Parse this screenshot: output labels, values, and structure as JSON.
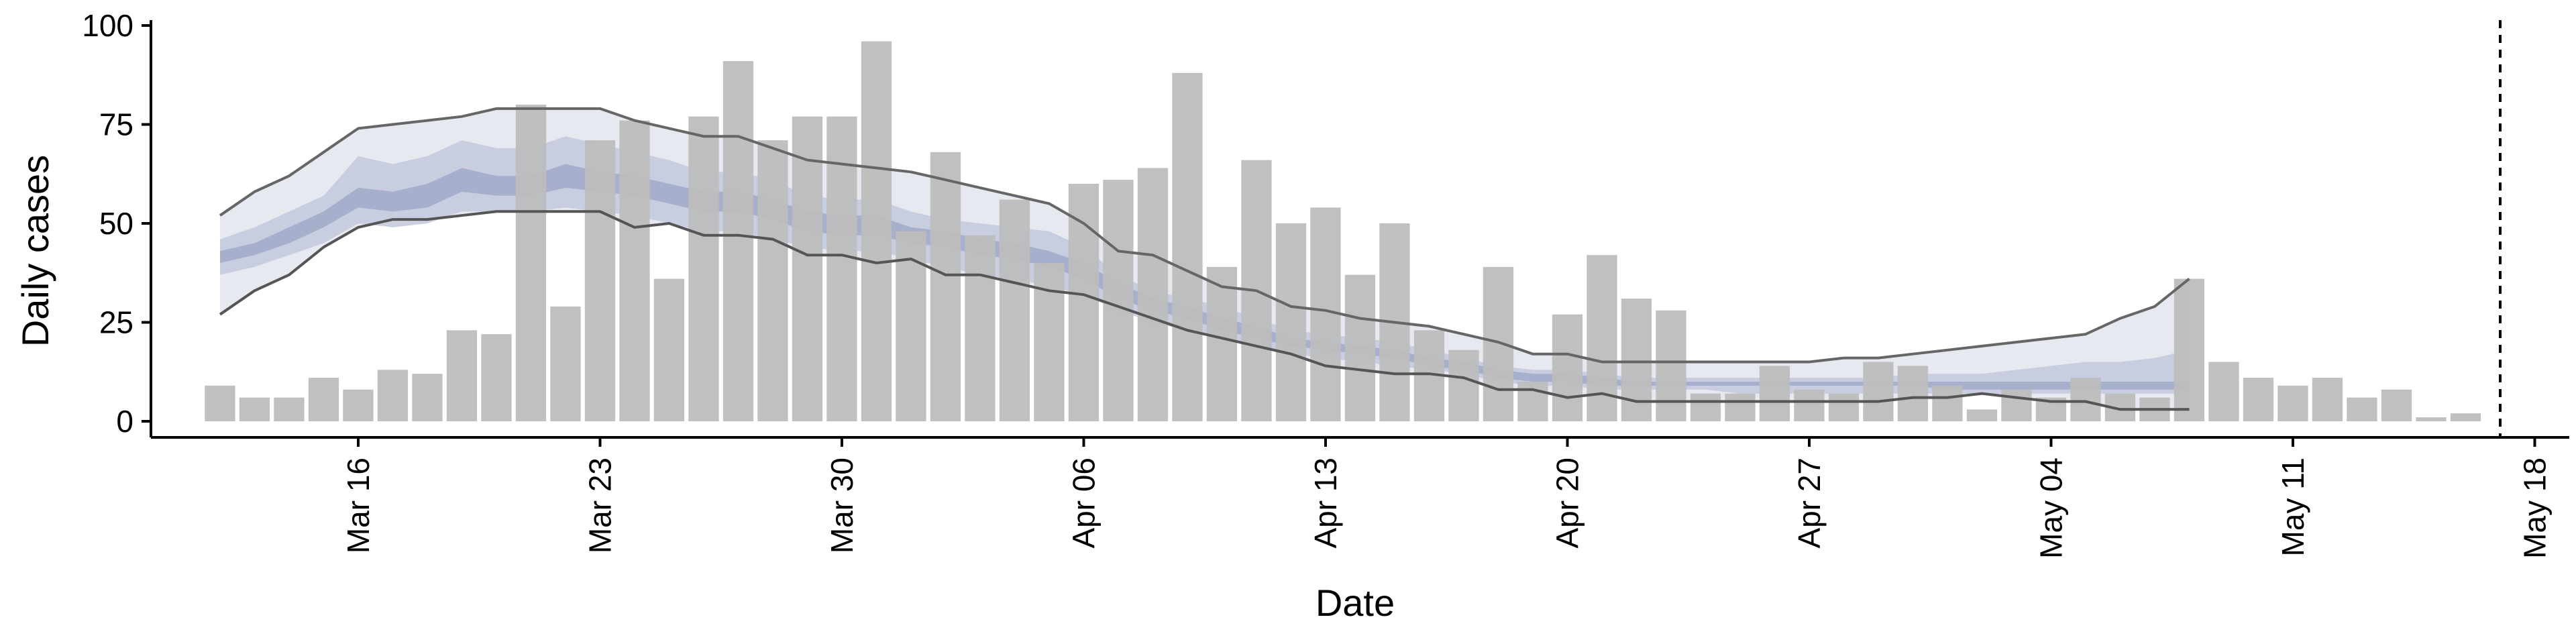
{
  "chart_data": {
    "type": "bar",
    "xlabel": "Date",
    "ylabel": "Daily cases",
    "ylim": [
      0,
      100
    ],
    "xlim": [
      "2020-03-10",
      "2020-05-19"
    ],
    "yticks": [
      0,
      25,
      50,
      75,
      100
    ],
    "xticks": [
      {
        "date": "2020-03-16",
        "label": "Mar 16"
      },
      {
        "date": "2020-03-23",
        "label": "Mar 23"
      },
      {
        "date": "2020-03-30",
        "label": "Mar 30"
      },
      {
        "date": "2020-04-06",
        "label": "Apr 06"
      },
      {
        "date": "2020-04-13",
        "label": "Apr 13"
      },
      {
        "date": "2020-04-20",
        "label": "Apr 20"
      },
      {
        "date": "2020-04-27",
        "label": "Apr 27"
      },
      {
        "date": "2020-05-04",
        "label": "May 04"
      },
      {
        "date": "2020-05-11",
        "label": "May 11"
      },
      {
        "date": "2020-05-18",
        "label": "May 18"
      }
    ],
    "grid": false,
    "bars": {
      "start_date": "2020-03-12",
      "color": "#bdbdbd",
      "values": [
        9,
        6,
        6,
        11,
        8,
        13,
        12,
        23,
        22,
        80,
        29,
        71,
        76,
        36,
        77,
        91,
        71,
        77,
        77,
        96,
        48,
        68,
        47,
        56,
        40,
        60,
        61,
        64,
        88,
        39,
        66,
        50,
        54,
        37,
        50,
        23,
        18,
        39,
        10,
        27,
        42,
        31,
        28,
        7,
        7,
        14,
        8,
        7,
        15,
        14,
        9,
        3,
        8,
        6,
        11,
        7,
        6,
        36,
        15,
        11,
        9,
        11,
        6,
        8,
        1,
        2
      ]
    },
    "bands": {
      "start_date": "2020-03-12",
      "outer_color": "#e7e9f1",
      "inner_color": "#c2c8dc",
      "core_color": "#9ea9c7",
      "outer_upper": [
        52,
        58,
        62,
        68,
        74,
        75,
        76,
        77,
        79,
        79,
        79,
        79,
        76,
        74,
        72,
        72,
        69,
        66,
        65,
        64,
        63,
        61,
        59,
        57,
        55,
        50,
        43,
        42,
        38,
        34,
        33,
        29,
        28,
        26,
        25,
        24,
        22,
        20,
        17,
        17,
        15,
        15,
        15,
        15,
        15,
        15,
        15,
        16,
        16,
        17,
        18,
        19,
        20,
        21,
        22,
        26,
        29,
        36
      ],
      "inner_upper": [
        46,
        49,
        53,
        57,
        67,
        65,
        67,
        71,
        69,
        69,
        72,
        70,
        68,
        66,
        63,
        63,
        61,
        57,
        56,
        56,
        53,
        51,
        50,
        49,
        48,
        44,
        37,
        33,
        31,
        29,
        26,
        23,
        22,
        21,
        20,
        18,
        16,
        14,
        13,
        13,
        12,
        11,
        11,
        11,
        11,
        11,
        11,
        11,
        11,
        12,
        12,
        12,
        13,
        14,
        15,
        15,
        16,
        18
      ],
      "core_upper": [
        43,
        45,
        49,
        53,
        59,
        58,
        60,
        64,
        62,
        62,
        65,
        63,
        62,
        60,
        58,
        58,
        56,
        53,
        52,
        52,
        49,
        48,
        46,
        45,
        43,
        40,
        35,
        31,
        29,
        26,
        24,
        21,
        20,
        19,
        18,
        16,
        15,
        13,
        12,
        12,
        11,
        10,
        10,
        10,
        10,
        10,
        10,
        10,
        10,
        10,
        10,
        10,
        10,
        10,
        10,
        10,
        10,
        10
      ],
      "core_lower": [
        40,
        42,
        45,
        49,
        54,
        53,
        54,
        58,
        57,
        57,
        59,
        58,
        57,
        55,
        53,
        53,
        51,
        48,
        47,
        47,
        45,
        44,
        42,
        41,
        39,
        36,
        31,
        28,
        26,
        23,
        21,
        19,
        18,
        17,
        16,
        14,
        13,
        11,
        10,
        10,
        9,
        9,
        9,
        9,
        9,
        9,
        9,
        9,
        9,
        9,
        8,
        8,
        8,
        8,
        8,
        8,
        8,
        8
      ],
      "inner_lower": [
        37,
        39,
        42,
        45,
        50,
        49,
        50,
        53,
        53,
        53,
        54,
        53,
        52,
        50,
        48,
        48,
        46,
        44,
        43,
        43,
        41,
        39,
        37,
        36,
        34,
        32,
        28,
        25,
        23,
        21,
        19,
        17,
        16,
        15,
        14,
        13,
        12,
        10,
        9,
        9,
        8,
        8,
        8,
        8,
        7,
        7,
        7,
        7,
        7,
        7,
        7,
        7,
        7,
        7,
        7,
        7,
        7,
        7
      ],
      "outer_lower": [
        27,
        33,
        37,
        44,
        49,
        51,
        51,
        52,
        53,
        53,
        53,
        53,
        49,
        50,
        47,
        47,
        46,
        42,
        42,
        40,
        41,
        37,
        37,
        35,
        33,
        32,
        29,
        26,
        23,
        21,
        19,
        17,
        14,
        13,
        12,
        12,
        11,
        8,
        8,
        6,
        7,
        5,
        5,
        5,
        5,
        5,
        5,
        5,
        5,
        6,
        6,
        7,
        6,
        5,
        5,
        3,
        3,
        3
      ]
    },
    "vline": {
      "date": "2020-05-17",
      "style": "dashed"
    }
  }
}
